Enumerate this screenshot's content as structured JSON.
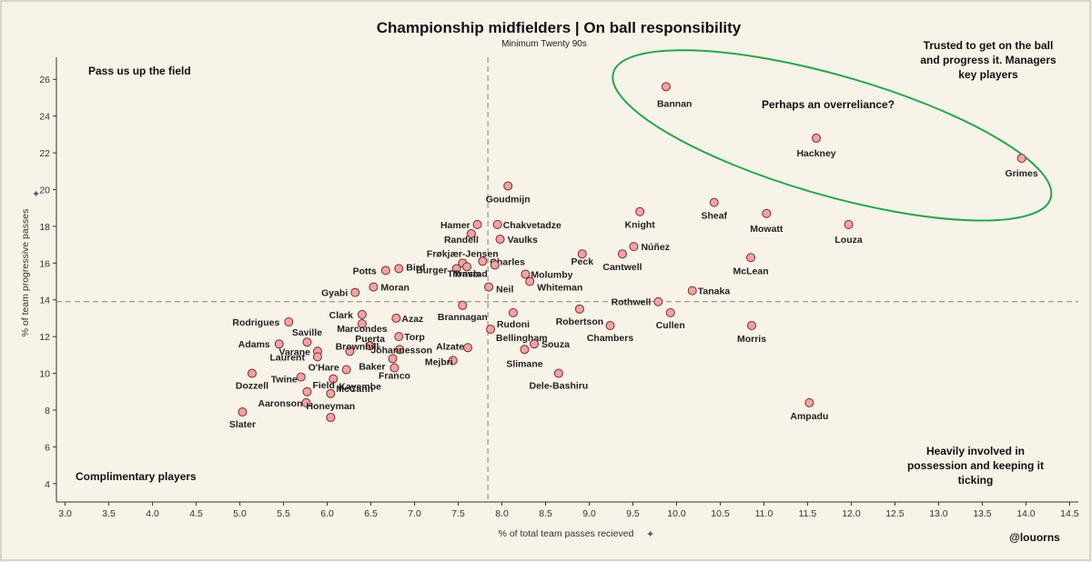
{
  "chart_data": {
    "type": "scatter",
    "title": "Championship midfielders | On ball responsibility",
    "subtitle": "Minimum Twenty 90s",
    "xlabel": "% of total team passes recieved",
    "ylabel": "% of team progressive passes",
    "xlim": [
      2.9,
      14.6
    ],
    "ylim": [
      3.0,
      27.2
    ],
    "x_ticks": [
      "3.0",
      "3.5",
      "4.0",
      "4.5",
      "5.0",
      "5.5",
      "6.0",
      "6.5",
      "7.0",
      "7.5",
      "8.0",
      "8.5",
      "9.0",
      "9.5",
      "10.0",
      "10.5",
      "11.0",
      "11.5",
      "12.0",
      "12.5",
      "13.0",
      "13.5",
      "14.0",
      "14.5"
    ],
    "y_ticks": [
      "4",
      "6",
      "8",
      "10",
      "12",
      "14",
      "16",
      "18",
      "20",
      "22",
      "24",
      "26"
    ],
    "ref_x": 7.84,
    "ref_y": 13.9,
    "grid": false,
    "marker_color": "#f2a3a3",
    "marker_edge": "#7a2a2a",
    "ellipse_color": "#22a84a",
    "credit": "@louorns",
    "points": [
      {
        "name": "Bannan",
        "x": 9.88,
        "y": 25.6
      },
      {
        "name": "Hackney",
        "x": 11.6,
        "y": 22.8
      },
      {
        "name": "Grimes",
        "x": 13.95,
        "y": 21.7
      },
      {
        "name": "Goudmijn",
        "x": 8.07,
        "y": 20.2
      },
      {
        "name": "Sheaf",
        "x": 10.43,
        "y": 19.3
      },
      {
        "name": "Knight",
        "x": 9.58,
        "y": 18.8
      },
      {
        "name": "Mowatt",
        "x": 11.03,
        "y": 18.7
      },
      {
        "name": "Louza",
        "x": 11.97,
        "y": 18.1
      },
      {
        "name": "Hamer",
        "x": 7.72,
        "y": 18.1
      },
      {
        "name": "Chakvetadze",
        "x": 7.95,
        "y": 18.1
      },
      {
        "name": "Vaulks",
        "x": 7.98,
        "y": 17.3
      },
      {
        "name": "Randell",
        "x": 7.65,
        "y": 17.6
      },
      {
        "name": "Núñez",
        "x": 9.51,
        "y": 16.9
      },
      {
        "name": "Cantwell",
        "x": 9.38,
        "y": 16.5
      },
      {
        "name": "Peck",
        "x": 8.92,
        "y": 16.5
      },
      {
        "name": "McLean",
        "x": 10.85,
        "y": 16.3
      },
      {
        "name": "Frøkjær-Jensen",
        "x": 7.55,
        "y": 16.0
      },
      {
        "name": "Burger",
        "x": 7.48,
        "y": 15.7
      },
      {
        "name": "Travis",
        "x": 7.6,
        "y": 15.8
      },
      {
        "name": "Charles",
        "x": 7.78,
        "y": 16.1
      },
      {
        "name": "Tronstad",
        "x": 7.92,
        "y": 15.9
      },
      {
        "name": "Bird",
        "x": 6.82,
        "y": 15.7
      },
      {
        "name": "Potts",
        "x": 6.67,
        "y": 15.6
      },
      {
        "name": "Molumby",
        "x": 8.27,
        "y": 15.4
      },
      {
        "name": "Whiteman",
        "x": 8.32,
        "y": 15.0
      },
      {
        "name": "Neil",
        "x": 7.85,
        "y": 14.7
      },
      {
        "name": "Moran",
        "x": 6.53,
        "y": 14.7
      },
      {
        "name": "Gyabi",
        "x": 6.32,
        "y": 14.4
      },
      {
        "name": "Tanaka",
        "x": 10.18,
        "y": 14.5
      },
      {
        "name": "Rothwell",
        "x": 9.79,
        "y": 13.9
      },
      {
        "name": "Brannagan",
        "x": 7.55,
        "y": 13.7
      },
      {
        "name": "Cullen",
        "x": 9.93,
        "y": 13.3
      },
      {
        "name": "Robertson",
        "x": 8.89,
        "y": 13.5
      },
      {
        "name": "Rudoni",
        "x": 8.13,
        "y": 13.3
      },
      {
        "name": "Clark",
        "x": 6.4,
        "y": 13.2
      },
      {
        "name": "Azaz",
        "x": 6.79,
        "y": 13.0
      },
      {
        "name": "Rodrigues",
        "x": 5.56,
        "y": 12.8
      },
      {
        "name": "Marcondes",
        "x": 6.4,
        "y": 12.7
      },
      {
        "name": "Chambers",
        "x": 9.24,
        "y": 12.6
      },
      {
        "name": "Morris",
        "x": 10.86,
        "y": 12.6
      },
      {
        "name": "Bellingham",
        "x": 7.87,
        "y": 12.4
      },
      {
        "name": "Torp",
        "x": 6.82,
        "y": 12.0
      },
      {
        "name": "Saville",
        "x": 5.77,
        "y": 11.7
      },
      {
        "name": "Adams",
        "x": 5.45,
        "y": 11.6
      },
      {
        "name": "Puerta",
        "x": 6.49,
        "y": 11.5
      },
      {
        "name": "Souza",
        "x": 8.37,
        "y": 11.6
      },
      {
        "name": "Alzate",
        "x": 7.61,
        "y": 11.4
      },
      {
        "name": "Slimane",
        "x": 8.26,
        "y": 11.3
      },
      {
        "name": "Varane",
        "x": 5.89,
        "y": 11.2
      },
      {
        "name": "Brownhill",
        "x": 6.26,
        "y": 11.2
      },
      {
        "name": "Jóhannesson",
        "x": 6.83,
        "y": 11.3
      },
      {
        "name": "Baker",
        "x": 6.75,
        "y": 10.8
      },
      {
        "name": "Laurent",
        "x": 5.89,
        "y": 10.9
      },
      {
        "name": "Mejbri",
        "x": 7.44,
        "y": 10.7
      },
      {
        "name": "O'Hare",
        "x": 6.22,
        "y": 10.2
      },
      {
        "name": "Franco",
        "x": 6.77,
        "y": 10.3
      },
      {
        "name": "Dozzell",
        "x": 5.14,
        "y": 10.0
      },
      {
        "name": "Dele-Bashiru",
        "x": 8.65,
        "y": 10.0
      },
      {
        "name": "Twine",
        "x": 5.7,
        "y": 9.8
      },
      {
        "name": "Kayembe",
        "x": 6.07,
        "y": 9.7
      },
      {
        "name": "Field",
        "x": 5.77,
        "y": 9.0
      },
      {
        "name": "McCann",
        "x": 6.04,
        "y": 8.9
      },
      {
        "name": "Aaronson",
        "x": 5.76,
        "y": 8.4
      },
      {
        "name": "Ampadu",
        "x": 11.52,
        "y": 8.4
      },
      {
        "name": "Slater",
        "x": 5.03,
        "y": 7.9
      },
      {
        "name": "Honeyman",
        "x": 6.04,
        "y": 7.6
      }
    ],
    "annotations": {
      "top_left": "Pass us up the field",
      "top_right_1": "Trusted to get on the ball",
      "top_right_2": "and progress it. Managers",
      "top_right_3": "key players",
      "ellipse_note": "Perhaps an overreliance?",
      "bottom_left": "Complimentary players",
      "bottom_right_1": "Heavily involved in",
      "bottom_right_2": "possession and keeping it",
      "bottom_right_3": "ticking"
    }
  }
}
